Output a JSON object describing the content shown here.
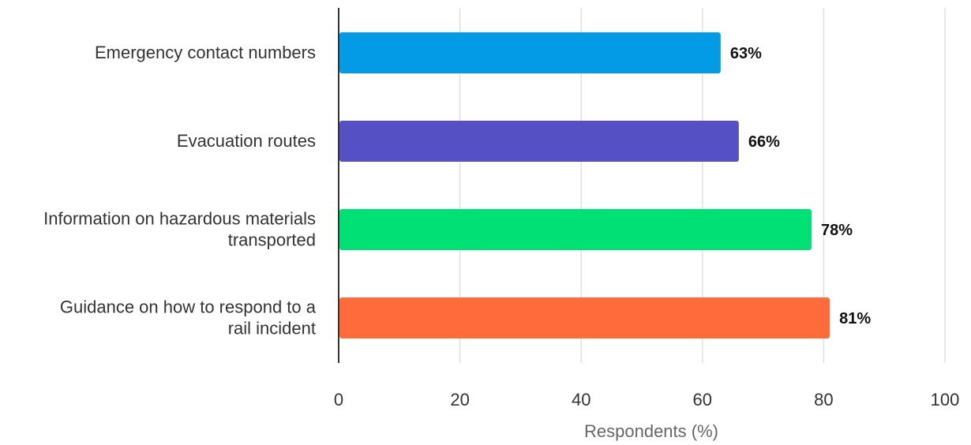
{
  "chart_data": {
    "type": "bar",
    "orientation": "horizontal",
    "categories": [
      [
        "Emergency contact numbers"
      ],
      [
        "Evacuation routes"
      ],
      [
        "Information on hazardous materials",
        "transported"
      ],
      [
        "Guidance on how to respond to a",
        "rail incident"
      ]
    ],
    "values": [
      63,
      66,
      78,
      81
    ],
    "data_labels": [
      "63%",
      "66%",
      "78%",
      "81%"
    ],
    "colors": [
      "#039BE5",
      "#5551C4",
      "#00E074",
      "#FF6B3A"
    ],
    "xlabel": "Respondents (%)",
    "ylabel": "",
    "xlim": [
      0,
      100
    ],
    "xticks": [
      0,
      20,
      40,
      60,
      80,
      100
    ],
    "xtick_labels": [
      "0",
      "20",
      "40",
      "60",
      "80",
      "100"
    ],
    "grid": "vertical",
    "grid_color": "#e0e0e0",
    "axis_color": "#333333",
    "legend": "none"
  }
}
